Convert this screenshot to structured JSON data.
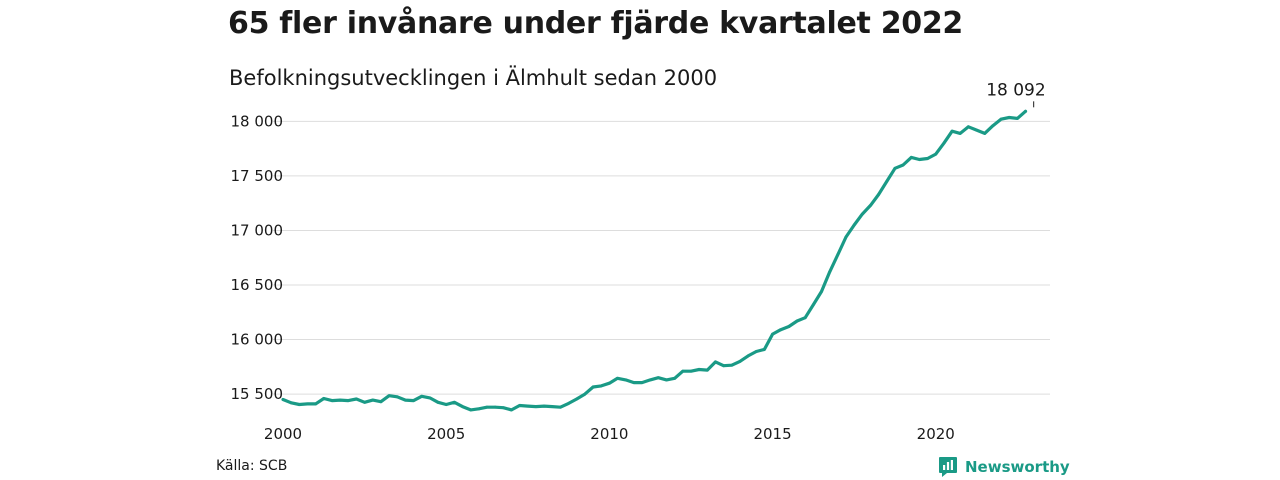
{
  "title": "65 fler invånare under fjärde kvartalet 2022",
  "subtitle": "Befolkningsutvecklingen i Älmhult sedan 2000",
  "source": "Källa: SCB",
  "brand": {
    "name": "Newsworthy",
    "icon": "newsworthy-logo-icon",
    "color": "#1a9a86"
  },
  "colors": {
    "line": "#1a9a86",
    "grid": "#dddddd"
  },
  "chart_data": {
    "type": "line",
    "title": "65 fler invånare under fjärde kvartalet 2022",
    "subtitle": "Befolkningsutvecklingen i Älmhult sedan 2000",
    "xlabel": "",
    "ylabel": "",
    "xlim": [
      2000,
      2023.5
    ],
    "ylim": [
      15400,
      18150
    ],
    "grid": true,
    "legend": "none",
    "y_ticks": [
      {
        "value": 15500,
        "label": "15 500"
      },
      {
        "value": 16000,
        "label": "16 000"
      },
      {
        "value": 16500,
        "label": "16 500"
      },
      {
        "value": 17000,
        "label": "17 000"
      },
      {
        "value": 17500,
        "label": "17 500"
      },
      {
        "value": 18000,
        "label": "18 000"
      }
    ],
    "x_ticks": [
      {
        "value": 2000,
        "label": "2000"
      },
      {
        "value": 2005,
        "label": "2005"
      },
      {
        "value": 2010,
        "label": "2010"
      },
      {
        "value": 2015,
        "label": "2015"
      },
      {
        "value": 2020,
        "label": "2020"
      }
    ],
    "annotation": {
      "label": "18 092",
      "x": 2023.0,
      "y": 18092
    },
    "series": [
      {
        "points": [
          [
            2000.0,
            15450
          ],
          [
            2000.25,
            15420
          ],
          [
            2000.5,
            15405
          ],
          [
            2000.75,
            15410
          ],
          [
            2001.0,
            15410
          ],
          [
            2001.25,
            15460
          ],
          [
            2001.5,
            15440
          ],
          [
            2001.75,
            15445
          ],
          [
            2002.0,
            15440
          ],
          [
            2002.25,
            15455
          ],
          [
            2002.5,
            15425
          ],
          [
            2002.75,
            15445
          ],
          [
            2003.0,
            15430
          ],
          [
            2003.25,
            15485
          ],
          [
            2003.5,
            15475
          ],
          [
            2003.75,
            15445
          ],
          [
            2004.0,
            15440
          ],
          [
            2004.25,
            15480
          ],
          [
            2004.5,
            15465
          ],
          [
            2004.75,
            15425
          ],
          [
            2005.0,
            15405
          ],
          [
            2005.25,
            15425
          ],
          [
            2005.5,
            15385
          ],
          [
            2005.75,
            15355
          ],
          [
            2006.0,
            15365
          ],
          [
            2006.25,
            15380
          ],
          [
            2006.5,
            15380
          ],
          [
            2006.75,
            15375
          ],
          [
            2007.0,
            15355
          ],
          [
            2007.25,
            15395
          ],
          [
            2007.5,
            15390
          ],
          [
            2007.75,
            15385
          ],
          [
            2008.0,
            15390
          ],
          [
            2008.25,
            15385
          ],
          [
            2008.5,
            15380
          ],
          [
            2008.75,
            15415
          ],
          [
            2009.0,
            15455
          ],
          [
            2009.25,
            15500
          ],
          [
            2009.5,
            15565
          ],
          [
            2009.75,
            15575
          ],
          [
            2010.0,
            15600
          ],
          [
            2010.25,
            15645
          ],
          [
            2010.5,
            15630
          ],
          [
            2010.75,
            15605
          ],
          [
            2011.0,
            15605
          ],
          [
            2011.25,
            15630
          ],
          [
            2011.5,
            15650
          ],
          [
            2011.75,
            15630
          ],
          [
            2012.0,
            15645
          ],
          [
            2012.25,
            15710
          ],
          [
            2012.5,
            15710
          ],
          [
            2012.75,
            15725
          ],
          [
            2013.0,
            15720
          ],
          [
            2013.25,
            15795
          ],
          [
            2013.5,
            15760
          ],
          [
            2013.75,
            15765
          ],
          [
            2014.0,
            15800
          ],
          [
            2014.25,
            15850
          ],
          [
            2014.5,
            15890
          ],
          [
            2014.75,
            15910
          ],
          [
            2015.0,
            16050
          ],
          [
            2015.25,
            16090
          ],
          [
            2015.5,
            16120
          ],
          [
            2015.75,
            16170
          ],
          [
            2016.0,
            16200
          ],
          [
            2016.25,
            16320
          ],
          [
            2016.5,
            16440
          ],
          [
            2016.75,
            16620
          ],
          [
            2017.0,
            16780
          ],
          [
            2017.25,
            16940
          ],
          [
            2017.5,
            17050
          ],
          [
            2017.75,
            17150
          ],
          [
            2018.0,
            17230
          ],
          [
            2018.25,
            17330
          ],
          [
            2018.5,
            17450
          ],
          [
            2018.75,
            17570
          ],
          [
            2019.0,
            17600
          ],
          [
            2019.25,
            17670
          ],
          [
            2019.5,
            17650
          ],
          [
            2019.75,
            17660
          ],
          [
            2020.0,
            17700
          ],
          [
            2020.25,
            17800
          ],
          [
            2020.5,
            17910
          ],
          [
            2020.75,
            17890
          ],
          [
            2021.0,
            17950
          ],
          [
            2021.25,
            17920
          ],
          [
            2021.5,
            17890
          ],
          [
            2021.75,
            17960
          ],
          [
            2022.0,
            18020
          ],
          [
            2022.25,
            18035
          ],
          [
            2022.5,
            18027
          ],
          [
            2022.75,
            18092
          ]
        ]
      }
    ]
  }
}
